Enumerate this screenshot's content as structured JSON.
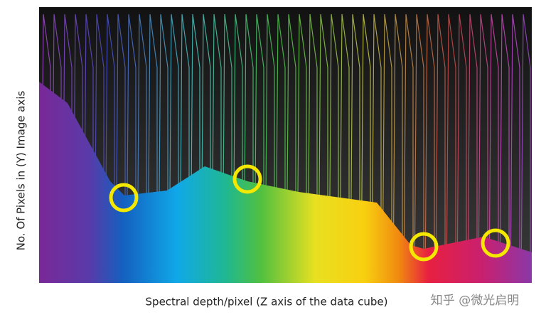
{
  "y_axis_label": "No. Of Pixels in (Y) Image axis",
  "x_axis_label": "Spectral depth/pixel (Z axis of the data cube)",
  "watermark": "知乎 @微光启明"
}
